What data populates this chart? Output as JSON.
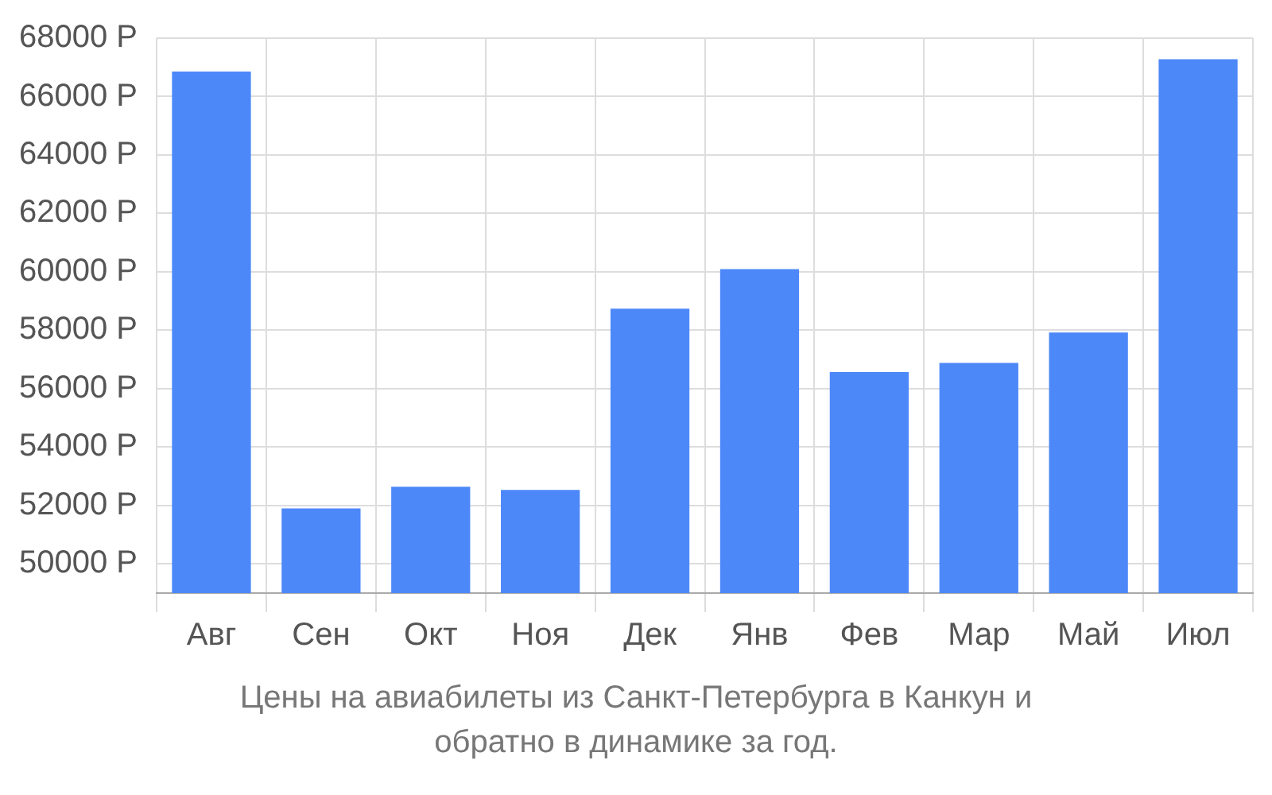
{
  "chart_data": {
    "type": "bar",
    "categories": [
      "Авг",
      "Сен",
      "Окт",
      "Ноя",
      "Дек",
      "Янв",
      "Фев",
      "Мар",
      "Май",
      "Июл"
    ],
    "values": [
      66860,
      51900,
      52640,
      52530,
      58740,
      60090,
      56570,
      56880,
      57920,
      67280
    ],
    "color": "#4d88f9",
    "ylim": [
      49000,
      68000
    ],
    "yticks": [
      {
        "value": 50000,
        "label": "50000 Р"
      },
      {
        "value": 52000,
        "label": "52000 Р"
      },
      {
        "value": 54000,
        "label": "54000 Р"
      },
      {
        "value": 56000,
        "label": "56000 Р"
      },
      {
        "value": 58000,
        "label": "58000 Р"
      },
      {
        "value": 60000,
        "label": "60000 Р"
      },
      {
        "value": 62000,
        "label": "62000 Р"
      },
      {
        "value": 64000,
        "label": "64000 Р"
      },
      {
        "value": 66000,
        "label": "66000 Р"
      },
      {
        "value": 68000,
        "label": "68000 Р"
      }
    ],
    "grid": true,
    "annotations": [
      "Цены на авиабилеты из Санкт-Петербурга в Канкун и обратно в динамике за год."
    ]
  }
}
